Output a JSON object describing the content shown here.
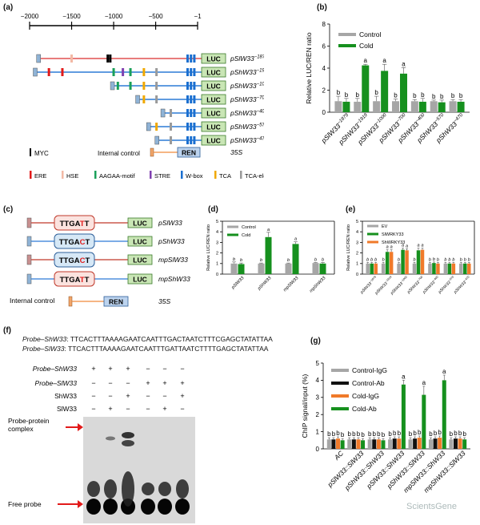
{
  "panels": {
    "a": {
      "label": "(a)",
      "scale_ticks": [
        "−2000",
        "−1500",
        "−1000",
        "−500",
        "−1"
      ],
      "constructs": [
        {
          "name": "pSlW33",
          "sup": "−1879"
        },
        {
          "name": "pShW33",
          "sup": "−1919"
        },
        {
          "name": "pShW33",
          "sup": "−1000"
        },
        {
          "name": "pShW33",
          "sup": "−700"
        },
        {
          "name": "pShW33",
          "sup": "−400"
        },
        {
          "name": "pShW33",
          "sup": "−570"
        },
        {
          "name": "pShW33",
          "sup": "−470"
        }
      ],
      "luc": "LUC",
      "myc": "MYC",
      "internal_control": "Internal control",
      "ren": "REN",
      "p35s": "35S",
      "legend": [
        "ERE",
        "HSE",
        "AAGAA-motif",
        "STRE",
        "W-box",
        "TCA",
        "TCA-element"
      ]
    },
    "c": {
      "label": "(c)",
      "constructs": [
        {
          "motif": "TTGATT",
          "name": "pSlW33"
        },
        {
          "motif": "TTGACT",
          "name": "pShW33"
        },
        {
          "motif": "TTGACT",
          "name": "mpSlW33"
        },
        {
          "motif": "TTGATT",
          "name": "mpShW33"
        }
      ],
      "luc": "LUC",
      "internal_control": "Internal control",
      "ren": "REN",
      "p35s": "35S"
    },
    "f": {
      "label": "(f)",
      "seq1_label": "Probe–ShW33",
      "seq1": ": TTCACTTTAAAAGAATCAATTTGACTAATCTTTCGAGCTATATTAA",
      "seq2_label": "Probe–SlW33",
      "seq2": ": TTCACTTTAAAAGAATCAATTTGATTAATCTTTTGAGCTATATTAA",
      "rows": [
        {
          "label": "Probe–ShW33",
          "vals": [
            "+",
            "+",
            "+",
            "−",
            "−",
            "−"
          ]
        },
        {
          "label": "Probe–SlW33",
          "vals": [
            "−",
            "−",
            "−",
            "+",
            "+",
            "+"
          ]
        },
        {
          "label": "ShW33",
          "vals": [
            "−",
            "−",
            "+",
            "−",
            "−",
            "+"
          ]
        },
        {
          "label": "SlW33",
          "vals": [
            "−",
            "+",
            "−",
            "−",
            "+",
            "−"
          ]
        }
      ],
      "complex_label": "Probe-protein complex",
      "free_label": "Free probe"
    },
    "watermark": "ScientsGene"
  },
  "chart_data": [
    {
      "panel": "(b)",
      "type": "bar",
      "title": "",
      "ylabel": "Relative LUC/REN ratio",
      "ylim": [
        0,
        8
      ],
      "yticks": [
        "0",
        "2",
        "4",
        "6",
        "8"
      ],
      "categories": [
        "pSlW33",
        "pShW33",
        "pShW33",
        "pShW33",
        "pShW33",
        "pShW33",
        "pShW33"
      ],
      "category_sups": [
        "−1879",
        "−1919",
        "−1000",
        "−700",
        "−400",
        "−570",
        "−470"
      ],
      "series": [
        {
          "name": "Control",
          "color": "#a6a6a6",
          "values": [
            1.0,
            0.95,
            1.0,
            1.0,
            1.0,
            1.0,
            1.0
          ],
          "errors": [
            0.45,
            0.3,
            0.45,
            0.2,
            0.15,
            0.1,
            0.15
          ],
          "labels": [
            "b",
            "b",
            "b",
            "b",
            "b",
            "b",
            "b"
          ]
        },
        {
          "name": "Cold",
          "color": "#16901e",
          "values": [
            0.95,
            4.25,
            3.75,
            3.5,
            0.95,
            0.9,
            0.95
          ],
          "errors": [
            0.3,
            0.1,
            0.6,
            0.55,
            0.3,
            0.2,
            0.2
          ],
          "labels": [
            "b",
            "a",
            "a",
            "a",
            "b",
            "b",
            "b"
          ]
        }
      ]
    },
    {
      "panel": "(d)",
      "type": "bar",
      "ylabel": "Relative LUC/REN ratio",
      "ylim": [
        0,
        5
      ],
      "yticks": [
        "0",
        "1",
        "2",
        "3",
        "4",
        "5"
      ],
      "categories": [
        "pSlW33",
        "pShW33",
        "mpSlW33",
        "mpShW33"
      ],
      "series": [
        {
          "name": "Control",
          "color": "#a6a6a6",
          "values": [
            1.0,
            1.0,
            1.0,
            1.05
          ],
          "errors": [
            0.15,
            0.05,
            0.05,
            0.05
          ],
          "labels": [
            "b",
            "b",
            "b",
            "b"
          ]
        },
        {
          "name": "Cold",
          "color": "#16901e",
          "values": [
            0.95,
            3.5,
            2.85,
            1.0
          ],
          "errors": [
            0.1,
            0.45,
            0.2,
            0.1
          ],
          "labels": [
            "b",
            "a",
            "a",
            "b"
          ]
        }
      ]
    },
    {
      "panel": "(e)",
      "type": "bar",
      "ylabel": "Relative LUC/REN ratio",
      "ylim": [
        0,
        5
      ],
      "yticks": [
        "0",
        "1",
        "2",
        "3",
        "4",
        "5"
      ],
      "categories": [
        "pSlW33",
        "pShW33",
        "pShW33",
        "pShW33",
        "pShW33",
        "pShW33",
        "pShW33"
      ],
      "category_sups": [
        "−1879",
        "−1919",
        "−1000",
        "−700",
        "−400",
        "−570",
        "−470"
      ],
      "series": [
        {
          "name": "EV",
          "color": "#a6a6a6",
          "values": [
            1.0,
            1.0,
            1.0,
            1.0,
            1.0,
            1.0,
            1.0
          ],
          "errors": [
            0.1,
            0.1,
            0.1,
            0.1,
            0.1,
            0.1,
            0.1
          ],
          "labels": [
            "b",
            "b",
            "b",
            "b",
            "b",
            "b",
            "b"
          ]
        },
        {
          "name": "SlWRKY33",
          "color": "#16901e",
          "values": [
            1.0,
            2.1,
            2.3,
            2.25,
            1.05,
            1.0,
            1.0
          ],
          "errors": [
            0.1,
            0.2,
            0.15,
            0.2,
            0.1,
            0.1,
            0.1
          ],
          "labels": [
            "b",
            "a",
            "a",
            "a",
            "b",
            "b",
            "b"
          ]
        },
        {
          "name": "ShWRKY33",
          "color": "#f07a2a",
          "values": [
            1.0,
            2.1,
            2.25,
            2.3,
            1.0,
            1.0,
            1.0
          ],
          "errors": [
            0.1,
            0.2,
            0.15,
            0.15,
            0.1,
            0.1,
            0.1
          ],
          "labels": [
            "b",
            "a",
            "a",
            "a",
            "b",
            "b",
            "b"
          ]
        }
      ]
    },
    {
      "panel": "(g)",
      "type": "bar",
      "ylabel": "ChIP signal/input (%)",
      "ylim": [
        0,
        5
      ],
      "yticks": [
        "0",
        "1",
        "2",
        "3",
        "4",
        "5"
      ],
      "categories": [
        "AC",
        "pSlW33::SlW33",
        "pShW33::ShW33",
        "pSlW33::ShW33",
        "pShW33::SlW33",
        "mpSlW33::ShW33",
        "mpShW33::SlW33"
      ],
      "series": [
        {
          "name": "Control-IgG",
          "color": "#a6a6a6",
          "values": [
            0.55,
            0.55,
            0.55,
            0.55,
            0.55,
            0.55,
            0.55
          ],
          "errors": [
            0.1,
            0.1,
            0.1,
            0.1,
            0.1,
            0.1,
            0.1
          ],
          "labels": [
            "b",
            "b",
            "b",
            "b",
            "b",
            "b",
            "b"
          ]
        },
        {
          "name": "Control-Ab",
          "color": "#111111",
          "values": [
            0.55,
            0.55,
            0.55,
            0.6,
            0.6,
            0.6,
            0.6
          ],
          "errors": [
            0.1,
            0.1,
            0.1,
            0.1,
            0.1,
            0.1,
            0.1
          ],
          "labels": [
            "b",
            "b",
            "b",
            "b",
            "b",
            "b",
            "b"
          ]
        },
        {
          "name": "Cold-IgG",
          "color": "#f07a2a",
          "values": [
            0.6,
            0.55,
            0.55,
            0.6,
            0.65,
            0.65,
            0.6
          ],
          "errors": [
            0.1,
            0.1,
            0.1,
            0.1,
            0.1,
            0.1,
            0.1
          ],
          "labels": [
            "b",
            "b",
            "b",
            "b",
            "b",
            "b",
            "b"
          ]
        },
        {
          "name": "Cold-Ab",
          "color": "#16901e",
          "values": [
            0.5,
            0.5,
            0.5,
            3.75,
            3.15,
            4.0,
            0.55
          ],
          "errors": [
            0.1,
            0.1,
            0.1,
            0.25,
            0.5,
            0.3,
            0.1
          ],
          "labels": [
            "b",
            "b",
            "b",
            "a",
            "a",
            "a",
            "b"
          ]
        }
      ]
    }
  ]
}
